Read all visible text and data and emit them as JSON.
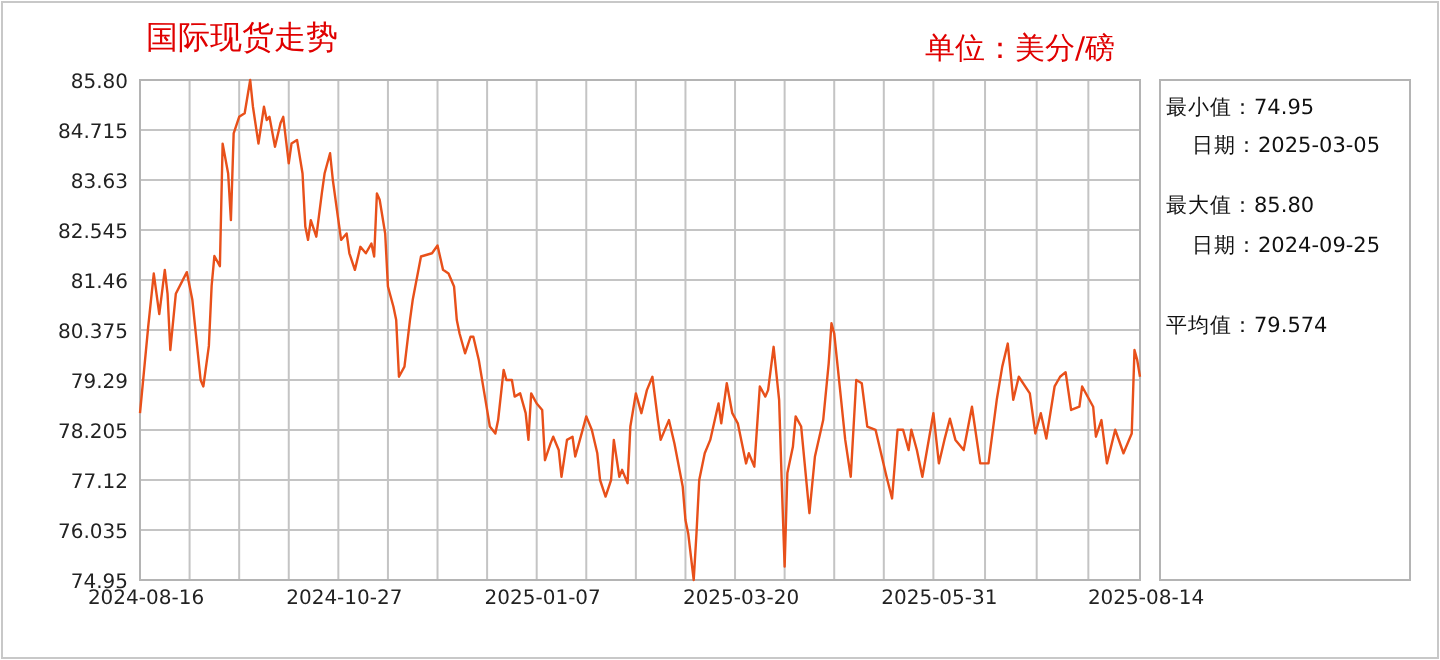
{
  "chart_data": {
    "type": "line",
    "title": "国际现货走势",
    "subtitle": "单位：美分/磅",
    "annotations": [
      "最小值：74.95",
      "日期：2025-03-05",
      "最大值：85.80",
      "日期：2024-09-25",
      "平均值：79.574"
    ],
    "x": [
      "2024-08-16",
      "2024-08-19",
      "2024-08-21",
      "2024-08-23",
      "2024-08-25",
      "2024-08-26",
      "2024-08-27",
      "2024-08-29",
      "2024-09-02",
      "2024-09-04",
      "2024-09-07",
      "2024-09-08",
      "2024-09-10",
      "2024-09-11",
      "2024-09-12",
      "2024-09-14",
      "2024-09-15",
      "2024-09-17",
      "2024-09-18",
      "2024-09-19",
      "2024-09-21",
      "2024-09-23",
      "2024-09-25",
      "2024-09-26",
      "2024-09-28",
      "2024-09-30",
      "2024-10-01",
      "2024-10-02",
      "2024-10-04",
      "2024-10-06",
      "2024-10-07",
      "2024-10-09",
      "2024-10-10",
      "2024-10-12",
      "2024-10-14",
      "2024-10-15",
      "2024-10-16",
      "2024-10-17",
      "2024-10-19",
      "2024-10-21",
      "2024-10-22",
      "2024-10-24",
      "2024-10-25",
      "2024-10-27",
      "2024-10-28",
      "2024-10-30",
      "2024-10-31",
      "2024-11-02",
      "2024-11-04",
      "2024-11-06",
      "2024-11-08",
      "2024-11-09",
      "2024-11-10",
      "2024-11-11",
      "2024-11-13",
      "2024-11-14",
      "2024-11-16",
      "2024-11-17",
      "2024-11-18",
      "2024-11-20",
      "2024-11-22",
      "2024-11-23",
      "2024-11-26",
      "2024-11-30",
      "2024-12-02",
      "2024-12-04",
      "2024-12-06",
      "2024-12-08",
      "2024-12-09",
      "2024-12-10",
      "2024-12-12",
      "2024-12-14",
      "2024-12-15",
      "2024-12-17",
      "2024-12-19",
      "2024-12-21",
      "2024-12-23",
      "2024-12-24",
      "2024-12-26",
      "2024-12-27",
      "2024-12-29",
      "2024-12-30",
      "2025-01-01",
      "2025-01-03",
      "2025-01-04",
      "2025-01-05",
      "2025-01-07",
      "2025-01-09",
      "2025-01-10",
      "2025-01-12",
      "2025-01-13",
      "2025-01-15",
      "2025-01-16",
      "2025-01-18",
      "2025-01-20",
      "2025-01-21",
      "2025-01-23",
      "2025-01-25",
      "2025-01-27",
      "2025-01-29",
      "2025-01-30",
      "2025-02-01",
      "2025-02-03",
      "2025-02-04",
      "2025-02-06",
      "2025-02-07",
      "2025-02-09",
      "2025-02-10",
      "2025-02-12",
      "2025-02-14",
      "2025-02-16",
      "2025-02-18",
      "2025-02-20",
      "2025-02-21",
      "2025-02-24",
      "2025-02-26",
      "2025-03-01",
      "2025-03-02",
      "2025-03-03",
      "2025-03-05",
      "2025-03-06",
      "2025-03-07",
      "2025-03-09",
      "2025-03-11",
      "2025-03-14",
      "2025-03-15",
      "2025-03-17",
      "2025-03-19",
      "2025-03-21",
      "2025-03-24",
      "2025-03-25",
      "2025-03-27",
      "2025-03-29",
      "2025-03-31",
      "2025-04-01",
      "2025-04-03",
      "2025-04-05",
      "2025-04-06",
      "2025-04-07",
      "2025-04-08",
      "2025-04-10",
      "2025-04-11",
      "2025-04-13",
      "2025-04-16",
      "2025-04-18",
      "2025-04-21",
      "2025-04-23",
      "2025-04-24",
      "2025-04-25",
      "2025-04-27",
      "2025-04-29",
      "2025-05-01",
      "2025-05-03",
      "2025-05-05",
      "2025-05-07",
      "2025-05-10",
      "2025-05-14",
      "2025-05-16",
      "2025-05-18",
      "2025-05-20",
      "2025-05-22",
      "2025-05-23",
      "2025-05-25",
      "2025-05-27",
      "2025-05-31",
      "2025-06-02",
      "2025-06-04",
      "2025-06-06",
      "2025-06-08",
      "2025-06-11",
      "2025-06-14",
      "2025-06-17",
      "2025-06-20",
      "2025-06-23",
      "2025-06-25",
      "2025-06-27",
      "2025-06-29",
      "2025-07-01",
      "2025-07-05",
      "2025-07-07",
      "2025-07-09",
      "2025-07-11",
      "2025-07-14",
      "2025-07-16",
      "2025-07-18",
      "2025-07-20",
      "2025-07-23",
      "2025-07-24",
      "2025-07-28",
      "2025-07-29",
      "2025-07-31",
      "2025-08-02",
      "2025-08-05",
      "2025-08-08",
      "2025-08-11",
      "2025-08-12",
      "2025-08-13",
      "2025-08-14"
    ],
    "values": [
      78.57,
      80.46,
      81.6,
      80.72,
      81.68,
      81.16,
      79.94,
      81.16,
      81.63,
      81.03,
      79.29,
      79.15,
      80.03,
      81.33,
      81.98,
      81.76,
      84.42,
      83.77,
      82.76,
      84.64,
      85.0,
      85.08,
      85.8,
      85.22,
      84.42,
      85.22,
      84.93,
      85.0,
      84.35,
      84.86,
      85.0,
      83.99,
      84.42,
      84.5,
      83.77,
      82.62,
      82.33,
      82.76,
      82.4,
      83.34,
      83.77,
      84.21,
      83.63,
      82.76,
      82.33,
      82.47,
      82.04,
      81.68,
      82.18,
      82.04,
      82.25,
      81.97,
      83.34,
      83.2,
      82.47,
      81.32,
      80.88,
      80.59,
      79.36,
      79.58,
      80.59,
      81.03,
      81.97,
      82.04,
      82.21,
      81.68,
      81.6,
      81.32,
      80.59,
      80.3,
      79.87,
      80.23,
      80.23,
      79.72,
      79.0,
      78.28,
      78.13,
      78.42,
      79.51,
      79.29,
      79.29,
      78.93,
      79.0,
      78.57,
      77.99,
      79.0,
      78.78,
      78.64,
      77.55,
      77.91,
      78.06,
      77.77,
      77.19,
      77.99,
      78.06,
      77.63,
      78.06,
      78.5,
      78.21,
      77.7,
      77.12,
      76.76,
      77.12,
      77.99,
      77.19,
      77.34,
      77.05,
      78.28,
      79.0,
      78.57,
      79.07,
      79.36,
      78.42,
      77.99,
      78.42,
      77.91,
      76.98,
      76.25,
      75.96,
      74.95,
      75.96,
      77.12,
      77.7,
      77.99,
      78.78,
      78.35,
      79.22,
      78.57,
      78.35,
      77.48,
      77.7,
      77.41,
      79.15,
      78.93,
      79.07,
      80.01,
      78.86,
      76.98,
      75.24,
      77.27,
      77.84,
      78.5,
      78.28,
      76.4,
      77.63,
      78.42,
      79.65,
      80.52,
      80.3,
      79.15,
      77.99,
      77.19,
      79.29,
      79.22,
      78.28,
      78.21,
      77.19,
      76.72,
      78.21,
      78.21,
      77.77,
      78.21,
      77.77,
      77.19,
      78.57,
      77.48,
      77.99,
      78.45,
      77.99,
      77.77,
      78.71,
      77.48,
      77.48,
      78.86,
      79.58,
      80.08,
      78.86,
      79.36,
      79.0,
      78.13,
      78.57,
      78.02,
      79.15,
      79.36,
      79.46,
      78.64,
      78.71,
      79.15,
      78.71,
      78.06,
      78.42,
      77.48,
      78.21,
      77.7,
      78.13,
      79.94,
      79.72,
      79.36
    ],
    "color": "#e8501a",
    "xlim": [
      "2024-08-16",
      "2025-08-14"
    ],
    "xticks": [
      {
        "value": "2024-08-16",
        "label": "2024-08-16"
      },
      {
        "value": "2024-09-03",
        "label": null
      },
      {
        "value": "2024-09-21",
        "label": null
      },
      {
        "value": "2024-10-09",
        "label": null
      },
      {
        "value": "2024-10-27",
        "label": "2024-10-27"
      },
      {
        "value": "2024-11-14",
        "label": null
      },
      {
        "value": "2024-12-02",
        "label": null
      },
      {
        "value": "2024-12-20",
        "label": null
      },
      {
        "value": "2025-01-07",
        "label": "2025-01-07"
      },
      {
        "value": "2025-01-25",
        "label": null
      },
      {
        "value": "2025-02-12",
        "label": null
      },
      {
        "value": "2025-03-02",
        "label": null
      },
      {
        "value": "2025-03-20",
        "label": "2025-03-20"
      },
      {
        "value": "2025-04-07",
        "label": null
      },
      {
        "value": "2025-04-25",
        "label": null
      },
      {
        "value": "2025-05-13",
        "label": null
      },
      {
        "value": "2025-05-31",
        "label": "2025-05-31"
      },
      {
        "value": "2025-06-18T18:00",
        "label": null
      },
      {
        "value": "2025-07-07T12:00",
        "label": null
      },
      {
        "value": "2025-07-26T06:00",
        "label": null
      },
      {
        "value": "2025-08-14",
        "label": "2025-08-14"
      }
    ],
    "ylim": [
      74.95,
      85.8
    ],
    "yticks": [
      74.95,
      76.035,
      77.12,
      78.205,
      79.29,
      80.375,
      81.46,
      82.545,
      83.63,
      84.715,
      {
        "value": 85.8,
        "label": "85.80"
      }
    ],
    "grid": true
  }
}
